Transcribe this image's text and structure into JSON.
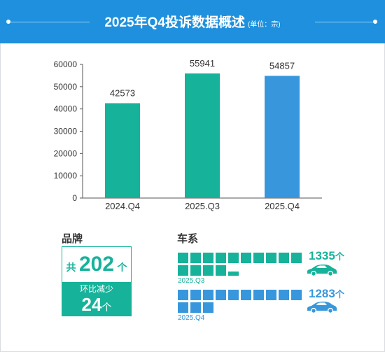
{
  "header": {
    "title": "2025年Q4投诉数据概述",
    "unit": "(单位：宗)"
  },
  "colors": {
    "header_bg": "#1e90de",
    "teal": "#16b39a",
    "blue": "#3897dc"
  },
  "chart_data": {
    "type": "bar",
    "categories": [
      "2024.Q4",
      "2025.Q3",
      "2025.Q4"
    ],
    "values": [
      42573,
      55941,
      54857
    ],
    "colors": [
      "#16b39a",
      "#16b39a",
      "#3897dc"
    ],
    "y_ticks": [
      0,
      10000,
      20000,
      30000,
      40000,
      50000,
      60000
    ],
    "ylim": [
      0,
      60000
    ],
    "grid": false,
    "legend": "none"
  },
  "brand": {
    "label": "品牌",
    "prefix": "共",
    "total": "202",
    "total_unit": "个",
    "change_label": "环比减少",
    "change": "24",
    "change_unit": "个"
  },
  "series_section": {
    "label": "车系",
    "rows": [
      {
        "period": "2025.Q3",
        "count": 1335,
        "count_text": "1335",
        "unit": "个",
        "color": "#16b39a"
      },
      {
        "period": "2025.Q4",
        "count": 1283,
        "count_text": "1283",
        "unit": "个",
        "color": "#3897dc"
      }
    ],
    "car_icon": "car-icon"
  }
}
